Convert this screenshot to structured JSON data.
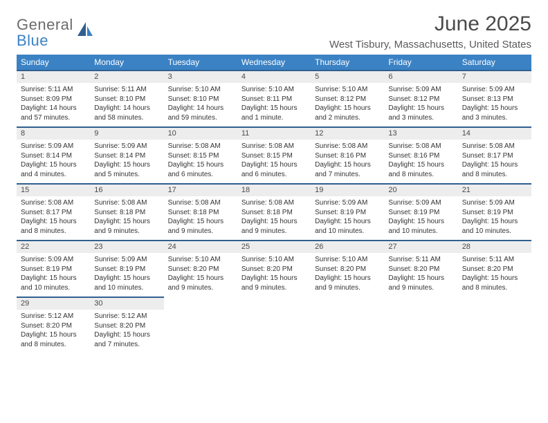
{
  "logo": {
    "top": "General",
    "bottom": "Blue"
  },
  "title": "June 2025",
  "location": "West Tisbury, Massachusetts, United States",
  "colors": {
    "header_bg": "#3b82c4",
    "header_border": "#2f5f8f",
    "daynum_bg": "#ededed",
    "text": "#333333"
  },
  "weekdays": [
    "Sunday",
    "Monday",
    "Tuesday",
    "Wednesday",
    "Thursday",
    "Friday",
    "Saturday"
  ],
  "weeks": [
    [
      {
        "n": "1",
        "sr": "Sunrise: 5:11 AM",
        "ss": "Sunset: 8:09 PM",
        "dl": "Daylight: 14 hours and 57 minutes."
      },
      {
        "n": "2",
        "sr": "Sunrise: 5:11 AM",
        "ss": "Sunset: 8:10 PM",
        "dl": "Daylight: 14 hours and 58 minutes."
      },
      {
        "n": "3",
        "sr": "Sunrise: 5:10 AM",
        "ss": "Sunset: 8:10 PM",
        "dl": "Daylight: 14 hours and 59 minutes."
      },
      {
        "n": "4",
        "sr": "Sunrise: 5:10 AM",
        "ss": "Sunset: 8:11 PM",
        "dl": "Daylight: 15 hours and 1 minute."
      },
      {
        "n": "5",
        "sr": "Sunrise: 5:10 AM",
        "ss": "Sunset: 8:12 PM",
        "dl": "Daylight: 15 hours and 2 minutes."
      },
      {
        "n": "6",
        "sr": "Sunrise: 5:09 AM",
        "ss": "Sunset: 8:12 PM",
        "dl": "Daylight: 15 hours and 3 minutes."
      },
      {
        "n": "7",
        "sr": "Sunrise: 5:09 AM",
        "ss": "Sunset: 8:13 PM",
        "dl": "Daylight: 15 hours and 3 minutes."
      }
    ],
    [
      {
        "n": "8",
        "sr": "Sunrise: 5:09 AM",
        "ss": "Sunset: 8:14 PM",
        "dl": "Daylight: 15 hours and 4 minutes."
      },
      {
        "n": "9",
        "sr": "Sunrise: 5:09 AM",
        "ss": "Sunset: 8:14 PM",
        "dl": "Daylight: 15 hours and 5 minutes."
      },
      {
        "n": "10",
        "sr": "Sunrise: 5:08 AM",
        "ss": "Sunset: 8:15 PM",
        "dl": "Daylight: 15 hours and 6 minutes."
      },
      {
        "n": "11",
        "sr": "Sunrise: 5:08 AM",
        "ss": "Sunset: 8:15 PM",
        "dl": "Daylight: 15 hours and 6 minutes."
      },
      {
        "n": "12",
        "sr": "Sunrise: 5:08 AM",
        "ss": "Sunset: 8:16 PM",
        "dl": "Daylight: 15 hours and 7 minutes."
      },
      {
        "n": "13",
        "sr": "Sunrise: 5:08 AM",
        "ss": "Sunset: 8:16 PM",
        "dl": "Daylight: 15 hours and 8 minutes."
      },
      {
        "n": "14",
        "sr": "Sunrise: 5:08 AM",
        "ss": "Sunset: 8:17 PM",
        "dl": "Daylight: 15 hours and 8 minutes."
      }
    ],
    [
      {
        "n": "15",
        "sr": "Sunrise: 5:08 AM",
        "ss": "Sunset: 8:17 PM",
        "dl": "Daylight: 15 hours and 8 minutes."
      },
      {
        "n": "16",
        "sr": "Sunrise: 5:08 AM",
        "ss": "Sunset: 8:18 PM",
        "dl": "Daylight: 15 hours and 9 minutes."
      },
      {
        "n": "17",
        "sr": "Sunrise: 5:08 AM",
        "ss": "Sunset: 8:18 PM",
        "dl": "Daylight: 15 hours and 9 minutes."
      },
      {
        "n": "18",
        "sr": "Sunrise: 5:08 AM",
        "ss": "Sunset: 8:18 PM",
        "dl": "Daylight: 15 hours and 9 minutes."
      },
      {
        "n": "19",
        "sr": "Sunrise: 5:09 AM",
        "ss": "Sunset: 8:19 PM",
        "dl": "Daylight: 15 hours and 10 minutes."
      },
      {
        "n": "20",
        "sr": "Sunrise: 5:09 AM",
        "ss": "Sunset: 8:19 PM",
        "dl": "Daylight: 15 hours and 10 minutes."
      },
      {
        "n": "21",
        "sr": "Sunrise: 5:09 AM",
        "ss": "Sunset: 8:19 PM",
        "dl": "Daylight: 15 hours and 10 minutes."
      }
    ],
    [
      {
        "n": "22",
        "sr": "Sunrise: 5:09 AM",
        "ss": "Sunset: 8:19 PM",
        "dl": "Daylight: 15 hours and 10 minutes."
      },
      {
        "n": "23",
        "sr": "Sunrise: 5:09 AM",
        "ss": "Sunset: 8:19 PM",
        "dl": "Daylight: 15 hours and 10 minutes."
      },
      {
        "n": "24",
        "sr": "Sunrise: 5:10 AM",
        "ss": "Sunset: 8:20 PM",
        "dl": "Daylight: 15 hours and 9 minutes."
      },
      {
        "n": "25",
        "sr": "Sunrise: 5:10 AM",
        "ss": "Sunset: 8:20 PM",
        "dl": "Daylight: 15 hours and 9 minutes."
      },
      {
        "n": "26",
        "sr": "Sunrise: 5:10 AM",
        "ss": "Sunset: 8:20 PM",
        "dl": "Daylight: 15 hours and 9 minutes."
      },
      {
        "n": "27",
        "sr": "Sunrise: 5:11 AM",
        "ss": "Sunset: 8:20 PM",
        "dl": "Daylight: 15 hours and 9 minutes."
      },
      {
        "n": "28",
        "sr": "Sunrise: 5:11 AM",
        "ss": "Sunset: 8:20 PM",
        "dl": "Daylight: 15 hours and 8 minutes."
      }
    ],
    [
      {
        "n": "29",
        "sr": "Sunrise: 5:12 AM",
        "ss": "Sunset: 8:20 PM",
        "dl": "Daylight: 15 hours and 8 minutes."
      },
      {
        "n": "30",
        "sr": "Sunrise: 5:12 AM",
        "ss": "Sunset: 8:20 PM",
        "dl": "Daylight: 15 hours and 7 minutes."
      },
      null,
      null,
      null,
      null,
      null
    ]
  ]
}
